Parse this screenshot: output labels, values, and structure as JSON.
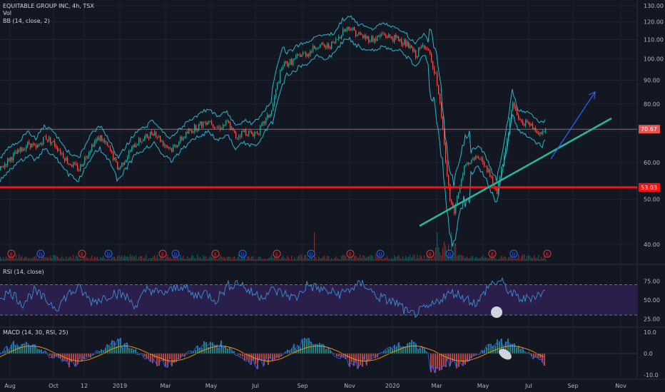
{
  "header": {
    "symbol_line": "EQUITABLE GROUP INC, 4h, TSX",
    "vol_label": "Vol",
    "bb_label": "BB (14, close, 2)"
  },
  "colors": {
    "background": "#131722",
    "grid": "#1f2330",
    "candle_up": "#26a69a",
    "candle_down": "#ef5350",
    "bb_band": "#2bb5c8",
    "support": "#ff1010",
    "trendline": "#26b89a",
    "arrow": "#2962ff",
    "rsi_fill": "#2a1f4a",
    "rsi_line": "#3d8fd6",
    "macd_line": "#2962ff",
    "signal_line": "#ff9800",
    "earnings_badge": "#e53935",
    "dividend_badge": "#2962ff"
  },
  "chart_data": [
    {
      "type": "line",
      "name": "price",
      "y_axis_ticks": [
        "130.00",
        "120.00",
        "110.00",
        "100.00",
        "90.00",
        "80.00",
        "70.00",
        "60.00",
        "50.00",
        "40.00"
      ],
      "x_axis_ticks": [
        "Aug",
        "Oct",
        "12",
        "2019",
        "Mar",
        "May",
        "Jul",
        "Sep",
        "Nov",
        "2020",
        "Mar",
        "May",
        "Jul",
        "Sep",
        "Nov"
      ],
      "ylim": [
        35,
        130
      ],
      "scale": "log",
      "x_index_range": [
        0,
        560
      ],
      "close_points": [
        [
          0,
          58
        ],
        [
          12,
          61
        ],
        [
          25,
          63
        ],
        [
          40,
          66
        ],
        [
          50,
          64
        ],
        [
          62,
          68
        ],
        [
          75,
          66
        ],
        [
          85,
          63
        ],
        [
          95,
          60
        ],
        [
          110,
          58
        ],
        [
          120,
          62
        ],
        [
          130,
          66
        ],
        [
          140,
          68
        ],
        [
          155,
          63
        ],
        [
          165,
          58
        ],
        [
          178,
          62
        ],
        [
          190,
          66
        ],
        [
          205,
          68
        ],
        [
          215,
          70
        ],
        [
          228,
          66
        ],
        [
          240,
          64
        ],
        [
          252,
          67
        ],
        [
          265,
          70
        ],
        [
          278,
          72
        ],
        [
          292,
          74
        ],
        [
          305,
          71
        ],
        [
          318,
          73
        ],
        [
          330,
          68
        ],
        [
          342,
          70
        ],
        [
          352,
          69
        ],
        [
          362,
          70
        ],
        [
          372,
          74
        ],
        [
          380,
          77
        ],
        [
          388,
          88
        ],
        [
          396,
          97
        ],
        [
          410,
          99
        ],
        [
          420,
          102
        ],
        [
          432,
          103
        ],
        [
          444,
          107
        ],
        [
          456,
          106
        ],
        [
          468,
          108
        ],
        [
          480,
          115
        ],
        [
          490,
          117
        ],
        [
          500,
          113
        ],
        [
          512,
          111
        ],
        [
          524,
          110
        ],
        [
          536,
          113
        ],
        [
          548,
          111
        ],
        [
          560,
          110
        ],
        [
          570,
          107
        ],
        [
          582,
          102
        ],
        [
          595,
          108
        ],
        [
          602,
          101
        ],
        [
          610,
          92
        ],
        [
          618,
          75
        ],
        [
          624,
          60
        ],
        [
          630,
          50
        ],
        [
          636,
          47
        ],
        [
          642,
          52
        ],
        [
          650,
          58
        ],
        [
          660,
          60
        ],
        [
          670,
          62
        ],
        [
          680,
          59
        ],
        [
          688,
          55
        ],
        [
          696,
          52
        ],
        [
          704,
          60
        ],
        [
          712,
          70
        ],
        [
          718,
          81
        ],
        [
          726,
          74
        ],
        [
          735,
          73
        ],
        [
          744,
          72
        ],
        [
          752,
          70
        ],
        [
          760,
          69
        ],
        [
          765,
          71
        ]
      ],
      "support_level": 53.03,
      "last_price": 70.67,
      "support_label": "53.03",
      "last_price_label": "70.67",
      "earnings_markers": [
        16,
        115,
        228,
        302,
        388,
        491,
        603,
        690,
        767
      ],
      "dividend_markers": [
        57,
        152,
        246,
        340,
        436,
        533,
        630,
        720
      ]
    },
    {
      "type": "line",
      "name": "RSI (14, close)",
      "y_axis_ticks": [
        "75.00",
        "50.00",
        "25.00"
      ],
      "ylim": [
        15,
        95
      ],
      "bands": [
        30,
        70
      ],
      "values_sample": [
        55,
        60,
        45,
        62,
        50,
        40,
        58,
        65,
        48,
        52,
        60,
        55,
        42,
        66,
        58,
        62,
        70,
        55,
        60,
        50,
        68,
        74,
        60,
        55,
        63,
        58,
        52,
        70,
        65,
        60,
        58,
        66,
        72,
        56,
        50,
        45,
        30,
        35,
        42,
        55,
        60,
        52,
        45,
        70,
        75,
        58,
        50,
        56,
        60
      ]
    },
    {
      "type": "bar",
      "name": "MACD (14, 30, RSI, 25)",
      "y_axis_ticks": [
        "10.0",
        "0.0",
        "-10.0"
      ],
      "ylim": [
        -12,
        12
      ]
    }
  ],
  "panes": {
    "rsi_label": "RSI (14, close)",
    "macd_label": "MACD (14, 30, RSI, 25)"
  },
  "annotations": {
    "earnings_badge_text": "E",
    "dividend_badge_text": "D"
  }
}
